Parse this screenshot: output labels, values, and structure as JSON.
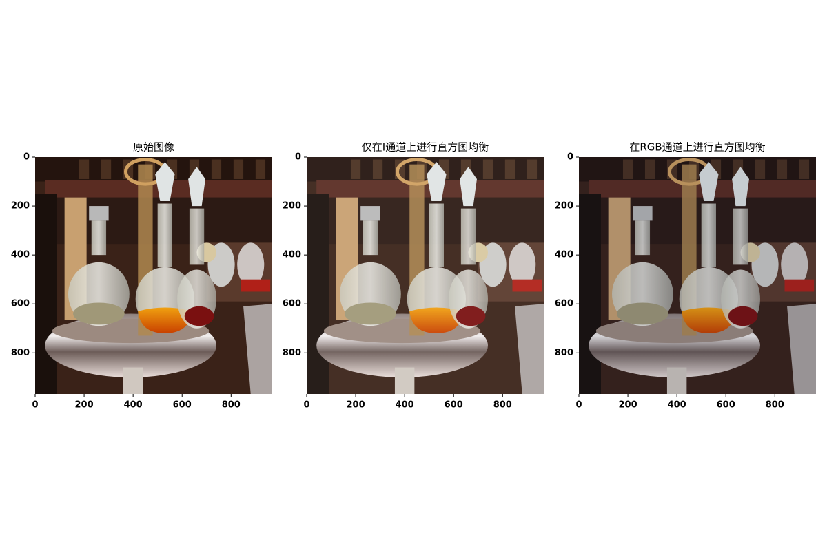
{
  "chart_data": [
    {
      "type": "image",
      "title": "原始图像",
      "xlim": [
        0,
        968
      ],
      "ylim": [
        968,
        0
      ],
      "xticks": [
        0,
        200,
        400,
        600,
        800
      ],
      "yticks": [
        0,
        200,
        400,
        600,
        800
      ]
    },
    {
      "type": "image",
      "title": "仅在I通道上进行直方图均衡",
      "xlim": [
        0,
        968
      ],
      "ylim": [
        968,
        0
      ],
      "xticks": [
        0,
        200,
        400,
        600,
        800
      ],
      "yticks": [
        0,
        200,
        400,
        600,
        800
      ]
    },
    {
      "type": "image",
      "title": "在RGB通道上进行直方图均衡",
      "xlim": [
        0,
        968
      ],
      "ylim": [
        968,
        0
      ],
      "xticks": [
        0,
        200,
        400,
        600,
        800
      ],
      "yticks": [
        0,
        200,
        400,
        600,
        800
      ]
    }
  ]
}
